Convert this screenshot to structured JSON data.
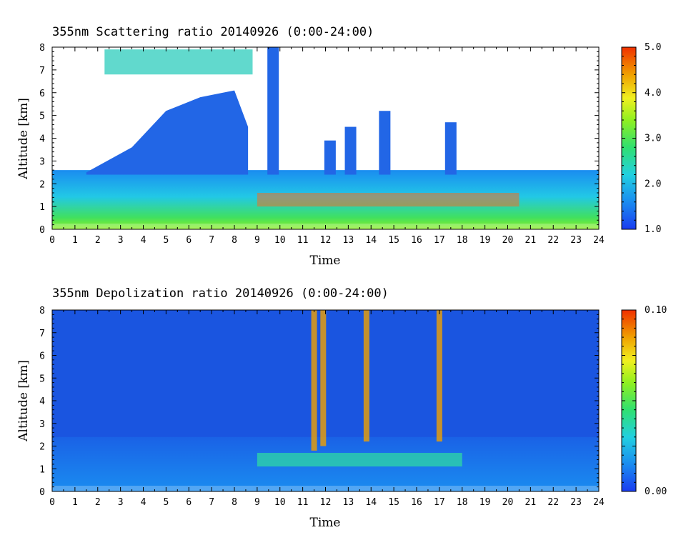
{
  "chart_data": [
    {
      "type": "heatmap",
      "title": "355nm Scattering ratio  20140926 (0:00-24:00)",
      "xlabel": "Time",
      "ylabel": "Altitude [km]",
      "xlim": [
        0,
        24
      ],
      "ylim": [
        0,
        8
      ],
      "x_ticks": [
        "0",
        "1",
        "2",
        "3",
        "4",
        "5",
        "6",
        "7",
        "8",
        "9",
        "10",
        "11",
        "12",
        "13",
        "14",
        "15",
        "16",
        "17",
        "18",
        "19",
        "20",
        "21",
        "22",
        "23",
        "24"
      ],
      "y_ticks": [
        "0",
        "1",
        "2",
        "3",
        "4",
        "5",
        "6",
        "7",
        "8"
      ],
      "colorbar": {
        "range": [
          1.0,
          5.0
        ],
        "tick_values": [
          1.0,
          2.0,
          3.0,
          4.0,
          5.0
        ],
        "tick_labels": [
          "1.0",
          "2.0",
          "3.0",
          "4.0",
          "5.0"
        ],
        "colors": [
          "#1a3cf0",
          "#1a8cf0",
          "#22d0e0",
          "#30e070",
          "#90f020",
          "#f0f020",
          "#f0a000",
          "#f03000"
        ]
      },
      "background_color": "#ffffff"
    },
    {
      "type": "heatmap",
      "title": "355nm Depolization ratio  20140926 (0:00-24:00)",
      "xlabel": "Time",
      "ylabel": "Altitude [km]",
      "xlim": [
        0,
        24
      ],
      "ylim": [
        0,
        8
      ],
      "x_ticks": [
        "0",
        "1",
        "2",
        "3",
        "4",
        "5",
        "6",
        "7",
        "8",
        "9",
        "10",
        "11",
        "12",
        "13",
        "14",
        "15",
        "16",
        "17",
        "18",
        "19",
        "20",
        "21",
        "22",
        "23",
        "24"
      ],
      "y_ticks": [
        "0",
        "1",
        "2",
        "3",
        "4",
        "5",
        "6",
        "7",
        "8"
      ],
      "colorbar": {
        "range": [
          0.0,
          0.1
        ],
        "tick_values": [
          0.0,
          0.1
        ],
        "tick_labels": [
          "0.00",
          "0.10"
        ],
        "colors": [
          "#1a3cf0",
          "#1a8cf0",
          "#22d0e0",
          "#30e070",
          "#90f020",
          "#f0f020",
          "#f0a000",
          "#f03000"
        ]
      },
      "background_color": "#1a55e0"
    }
  ]
}
